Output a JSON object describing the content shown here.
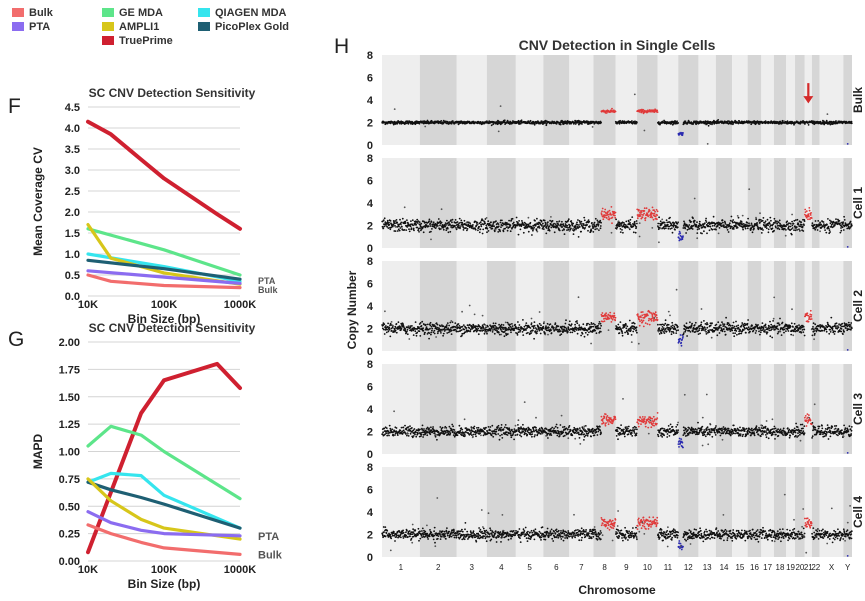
{
  "legend": [
    {
      "name": "Bulk",
      "color": "#f26d6d"
    },
    {
      "name": "PTA",
      "color": "#8b6cf0"
    },
    {
      "name": "GE MDA",
      "color": "#5de58a"
    },
    {
      "name": "AMPLI1",
      "color": "#d7c61a"
    },
    {
      "name": "TruePrime",
      "color": "#cf2030"
    },
    {
      "name": "QIAGEN MDA",
      "color": "#35e5ee"
    },
    {
      "name": "PicoPlex Gold",
      "color": "#1e5f73"
    }
  ],
  "panel_letters": {
    "F": "F",
    "G": "G",
    "H": "H"
  },
  "chart_data": [
    {
      "panel": "F",
      "type": "line",
      "title": "SC CNV Detection Sensitivity",
      "xlabel": "Bin Size (bp)",
      "ylabel": "Mean Coverage CV",
      "x_scale": "log",
      "x_ticks": [
        {
          "v": 10000,
          "label": "10K"
        },
        {
          "v": 100000,
          "label": "100K"
        },
        {
          "v": 1000000,
          "label": "1000K"
        }
      ],
      "y_ticks": [
        "0.0",
        "0.5",
        "1.0",
        "1.5",
        "2.0",
        "2.5",
        "3.0",
        "3.5",
        "4.0",
        "4.5"
      ],
      "ylim": [
        0,
        4.5
      ],
      "grid": true,
      "end_labels": [
        "PTA",
        "Bulk"
      ],
      "series": [
        {
          "name": "TruePrime",
          "color": "#cf2030",
          "x": [
            10000,
            20000,
            50000,
            100000,
            500000,
            1000000
          ],
          "y": [
            4.15,
            3.85,
            3.25,
            2.8,
            1.95,
            1.6
          ]
        },
        {
          "name": "GE MDA",
          "color": "#5de58a",
          "x": [
            10000,
            100000,
            1000000
          ],
          "y": [
            1.6,
            1.1,
            0.5
          ]
        },
        {
          "name": "QIAGEN MDA",
          "color": "#35e5ee",
          "x": [
            10000,
            100000,
            1000000
          ],
          "y": [
            1.0,
            0.7,
            0.35
          ]
        },
        {
          "name": "AMPLI1",
          "color": "#d7c61a",
          "x": [
            10000,
            20000,
            100000,
            1000000
          ],
          "y": [
            1.7,
            0.9,
            0.55,
            0.28
          ]
        },
        {
          "name": "PicoPlex Gold",
          "color": "#1e5f73",
          "x": [
            10000,
            100000,
            1000000
          ],
          "y": [
            0.85,
            0.65,
            0.4
          ]
        },
        {
          "name": "PTA",
          "color": "#8b6cf0",
          "x": [
            10000,
            100000,
            1000000
          ],
          "y": [
            0.6,
            0.45,
            0.3
          ]
        },
        {
          "name": "Bulk",
          "color": "#f26d6d",
          "x": [
            10000,
            20000,
            100000,
            1000000
          ],
          "y": [
            0.5,
            0.35,
            0.25,
            0.2
          ]
        }
      ]
    },
    {
      "panel": "G",
      "type": "line",
      "title": "SC CNV Detection Sensitivity",
      "xlabel": "Bin Size (bp)",
      "ylabel": "MAPD",
      "x_scale": "log",
      "x_ticks": [
        {
          "v": 10000,
          "label": "10K"
        },
        {
          "v": 100000,
          "label": "100K"
        },
        {
          "v": 1000000,
          "label": "1000K"
        }
      ],
      "y_ticks": [
        "0.00",
        "0.25",
        "0.50",
        "0.75",
        "1.00",
        "1.25",
        "1.50",
        "1.75",
        "2.00"
      ],
      "ylim": [
        0,
        2.0
      ],
      "grid": true,
      "end_labels": [
        "PTA",
        "Bulk"
      ],
      "series": [
        {
          "name": "TruePrime",
          "color": "#cf2030",
          "x": [
            10000,
            50000,
            100000,
            500000,
            1000000
          ],
          "y": [
            0.08,
            1.35,
            1.65,
            1.8,
            1.58
          ]
        },
        {
          "name": "GE MDA",
          "color": "#5de58a",
          "x": [
            10000,
            20000,
            50000,
            100000,
            1000000
          ],
          "y": [
            1.05,
            1.23,
            1.15,
            1.0,
            0.57
          ]
        },
        {
          "name": "QIAGEN MDA",
          "color": "#35e5ee",
          "x": [
            10000,
            20000,
            50000,
            100000,
            1000000
          ],
          "y": [
            0.72,
            0.8,
            0.78,
            0.6,
            0.3
          ]
        },
        {
          "name": "PicoPlex Gold",
          "color": "#1e5f73",
          "x": [
            10000,
            20000,
            50000,
            100000,
            1000000
          ],
          "y": [
            0.72,
            0.65,
            0.58,
            0.52,
            0.3
          ]
        },
        {
          "name": "AMPLI1",
          "color": "#d7c61a",
          "x": [
            10000,
            20000,
            50000,
            100000,
            1000000
          ],
          "y": [
            0.75,
            0.55,
            0.38,
            0.3,
            0.2
          ]
        },
        {
          "name": "PTA",
          "color": "#8b6cf0",
          "x": [
            10000,
            20000,
            50000,
            100000,
            1000000
          ],
          "y": [
            0.45,
            0.35,
            0.28,
            0.25,
            0.23
          ]
        },
        {
          "name": "Bulk",
          "color": "#f26d6d",
          "x": [
            10000,
            20000,
            50000,
            100000,
            1000000
          ],
          "y": [
            0.33,
            0.25,
            0.17,
            0.12,
            0.06
          ]
        }
      ]
    },
    {
      "panel": "H",
      "type": "scatter",
      "title": "CNV Detection in Single Cells",
      "xlabel": "Chromosome",
      "ylabel": "Copy Number",
      "ylim": [
        0,
        8
      ],
      "y_ticks": [
        "0",
        "2",
        "4",
        "6",
        "8"
      ],
      "chromosomes": [
        "1",
        "2",
        "3",
        "4",
        "5",
        "6",
        "7",
        "8",
        "9",
        "10",
        "11",
        "12",
        "13",
        "14",
        "15",
        "16",
        "17",
        "18",
        "19",
        "20",
        "21",
        "22",
        "X",
        "Y"
      ],
      "chromosome_relative_sizes": [
        249,
        243,
        198,
        191,
        181,
        171,
        159,
        146,
        141,
        136,
        135,
        133,
        115,
        107,
        102,
        90,
        83,
        80,
        59,
        64,
        47,
        51,
        156,
        57
      ],
      "rows": [
        {
          "label": "Bulk",
          "noise": 0.12,
          "arrow_at_chromosome": "21"
        },
        {
          "label": "Cell 1",
          "noise": 0.45
        },
        {
          "label": "Cell 2",
          "noise": 0.45
        },
        {
          "label": "Cell 3",
          "noise": 0.4
        },
        {
          "label": "Cell 4",
          "noise": 0.4
        }
      ],
      "segments": [
        {
          "chromosome": "8",
          "copy_number": 3,
          "part": "q",
          "color": "#e03a3a"
        },
        {
          "chromosome": "10",
          "copy_number": 3,
          "color": "#e03a3a"
        },
        {
          "chromosome": "12",
          "copy_number": 1,
          "part": "p-end",
          "color": "#2b2bb0"
        },
        {
          "chromosome": "21",
          "copy_number": 3,
          "color": "#e03a3a",
          "cells_only": true
        }
      ],
      "base_copy_number": 2
    }
  ]
}
